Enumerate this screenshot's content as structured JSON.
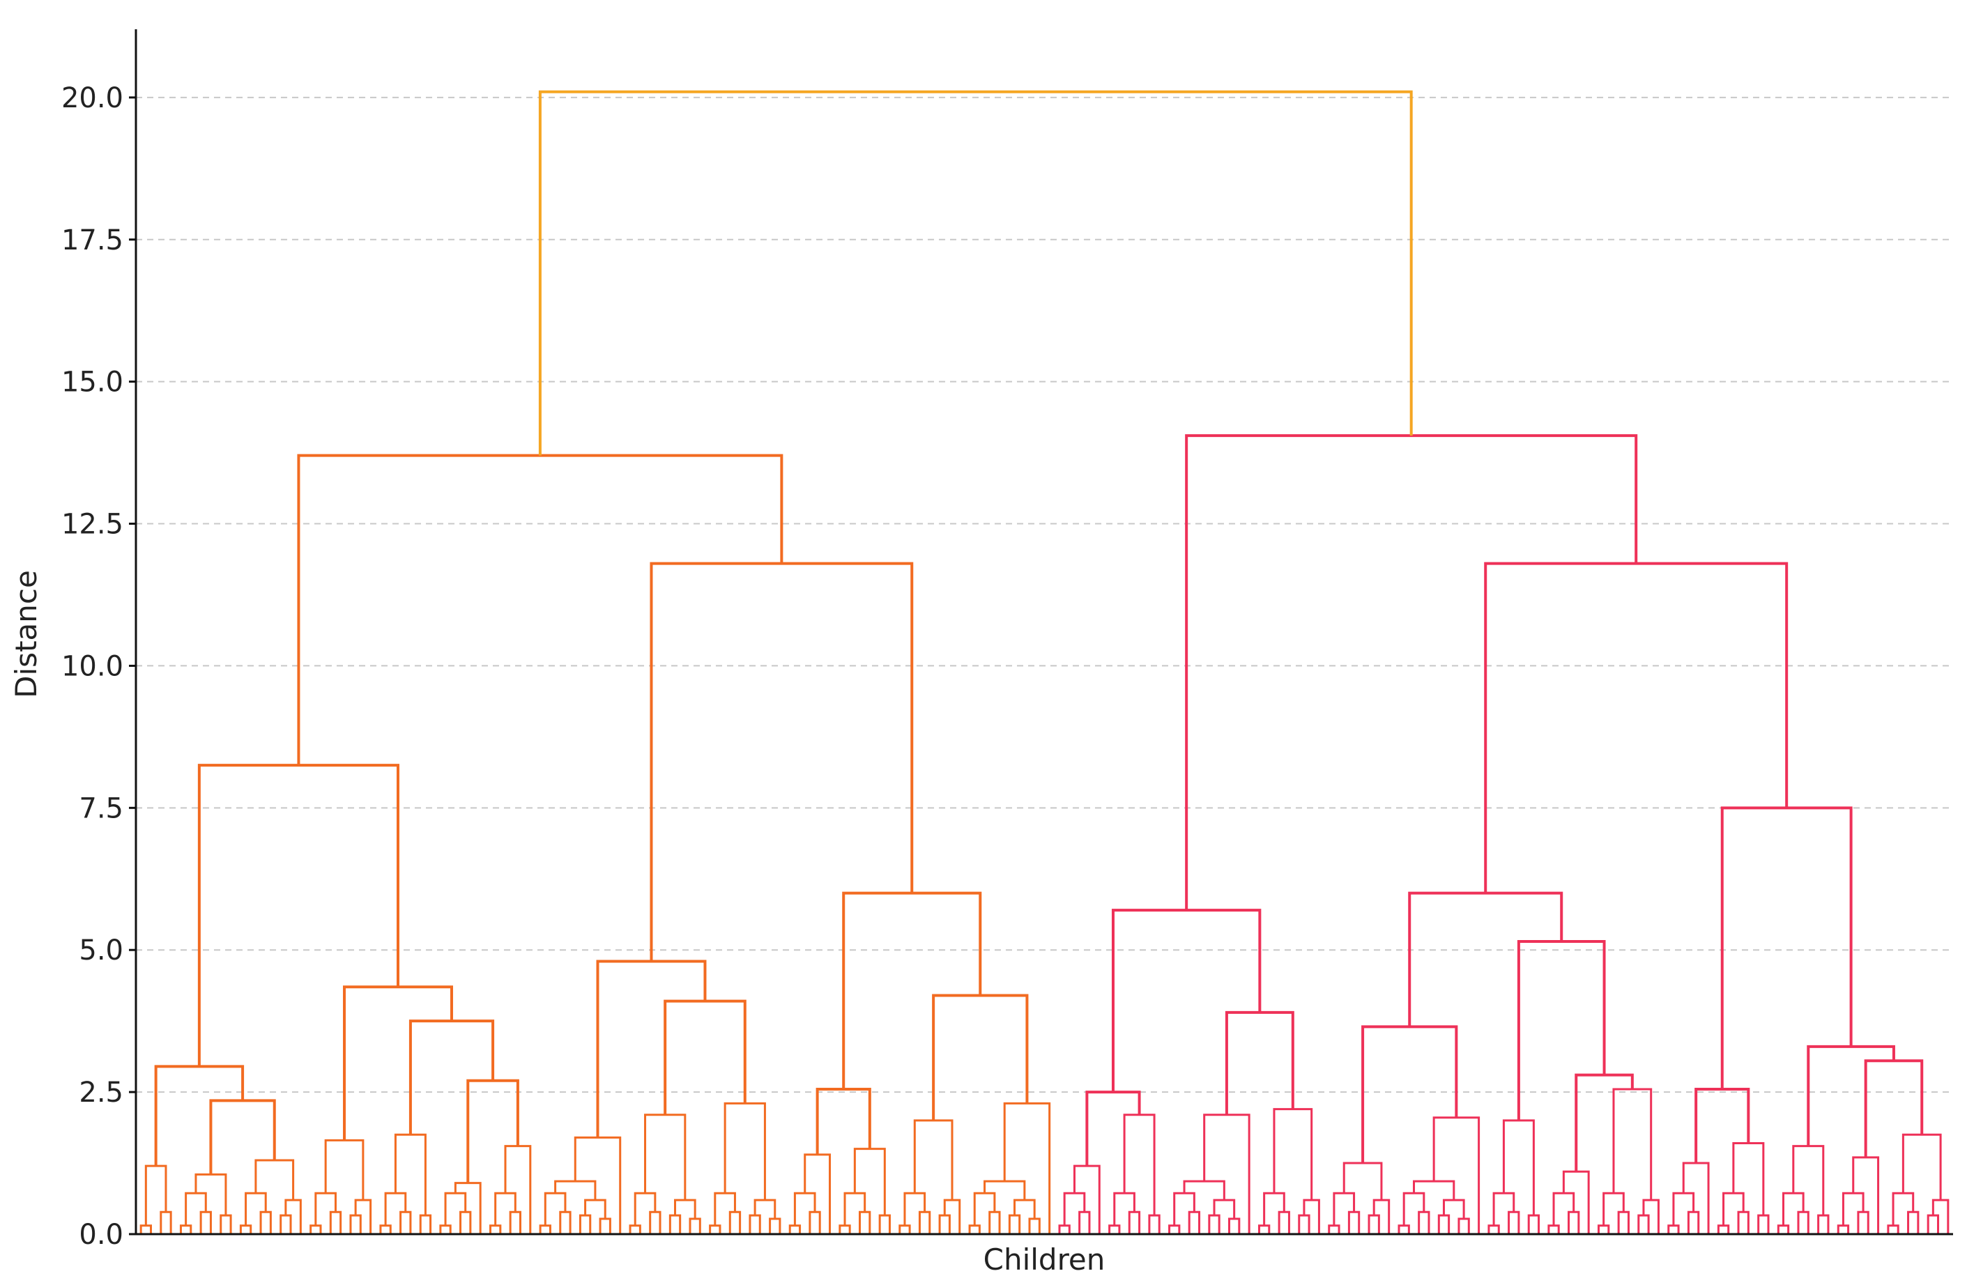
{
  "chart_data": {
    "type": "dendrogram",
    "title": "",
    "xlabel": "Children",
    "ylabel": "Distance",
    "ylim": [
      0,
      21.2
    ],
    "yticks": [
      0.0,
      2.5,
      5.0,
      7.5,
      10.0,
      12.5,
      15.0,
      17.5,
      20.0
    ],
    "ytick_labels": [
      "0.0",
      "2.5",
      "5.0",
      "7.5",
      "10.0",
      "12.5",
      "15.0",
      "17.5",
      "20.0"
    ],
    "grid": true,
    "colors": {
      "root": "#F5A623",
      "cluster_1": "#F26B21",
      "cluster_2": "#EE3158"
    },
    "tree": {
      "h": 20.1,
      "c": "root",
      "children": [
        {
          "h": 13.7,
          "c": "cluster_1",
          "children": [
            {
              "h": 8.25,
              "children": [
                {
                  "h": 2.95,
                  "children": [
                    {
                      "h": 1.2,
                      "leaves": 4
                    },
                    {
                      "h": 2.35,
                      "children": [
                        {
                          "h": 1.05,
                          "leaves": 6
                        },
                        {
                          "h": 1.3,
                          "leaves": 7
                        }
                      ]
                    }
                  ]
                },
                {
                  "h": 4.35,
                  "children": [
                    {
                      "h": 1.65,
                      "leaves": 7
                    },
                    {
                      "h": 3.75,
                      "children": [
                        {
                          "h": 1.75,
                          "leaves": 6
                        },
                        {
                          "h": 2.7,
                          "children": [
                            {
                              "h": 0.9,
                              "leaves": 5
                            },
                            {
                              "h": 1.55,
                              "leaves": 5
                            }
                          ]
                        }
                      ]
                    }
                  ]
                }
              ]
            },
            {
              "h": 11.8,
              "children": [
                {
                  "h": 4.8,
                  "children": [
                    {
                      "h": 1.7,
                      "leaves": 9
                    },
                    {
                      "h": 4.1,
                      "children": [
                        {
                          "h": 2.1,
                          "leaves": 8
                        },
                        {
                          "h": 2.3,
                          "leaves": 8
                        }
                      ]
                    }
                  ]
                },
                {
                  "h": 6.0,
                  "children": [
                    {
                      "h": 2.55,
                      "children": [
                        {
                          "h": 1.4,
                          "leaves": 5
                        },
                        {
                          "h": 1.5,
                          "leaves": 6
                        }
                      ]
                    },
                    {
                      "h": 4.2,
                      "children": [
                        {
                          "h": 2.0,
                          "leaves": 7
                        },
                        {
                          "h": 2.3,
                          "leaves": 9
                        }
                      ]
                    }
                  ]
                }
              ]
            }
          ]
        },
        {
          "h": 14.05,
          "c": "cluster_2",
          "children": [
            {
              "h": 5.7,
              "children": [
                {
                  "h": 2.5,
                  "children": [
                    {
                      "h": 1.2,
                      "leaves": 5
                    },
                    {
                      "h": 2.1,
                      "leaves": 6
                    }
                  ]
                },
                {
                  "h": 3.9,
                  "children": [
                    {
                      "h": 2.1,
                      "leaves": 9
                    },
                    {
                      "h": 2.2,
                      "leaves": 7
                    }
                  ]
                }
              ]
            },
            {
              "h": 11.8,
              "children": [
                {
                  "h": 6.0,
                  "children": [
                    {
                      "h": 3.65,
                      "children": [
                        {
                          "h": 1.25,
                          "leaves": 7
                        },
                        {
                          "h": 2.05,
                          "leaves": 9
                        }
                      ]
                    },
                    {
                      "h": 5.15,
                      "children": [
                        {
                          "h": 2.0,
                          "leaves": 6
                        },
                        {
                          "h": 2.8,
                          "children": [
                            {
                              "h": 1.1,
                              "leaves": 5
                            },
                            {
                              "h": 2.55,
                              "leaves": 7
                            }
                          ]
                        }
                      ]
                    }
                  ]
                },
                {
                  "h": 7.5,
                  "children": [
                    {
                      "h": 2.55,
                      "children": [
                        {
                          "h": 1.25,
                          "leaves": 5
                        },
                        {
                          "h": 1.6,
                          "leaves": 6
                        }
                      ]
                    },
                    {
                      "h": 3.3,
                      "children": [
                        {
                          "h": 1.55,
                          "leaves": 6
                        },
                        {
                          "h": 3.05,
                          "children": [
                            {
                              "h": 1.35,
                              "leaves": 5
                            },
                            {
                              "h": 1.75,
                              "leaves": 7
                            }
                          ]
                        }
                      ]
                    }
                  ]
                }
              ]
            }
          ]
        }
      ]
    }
  }
}
